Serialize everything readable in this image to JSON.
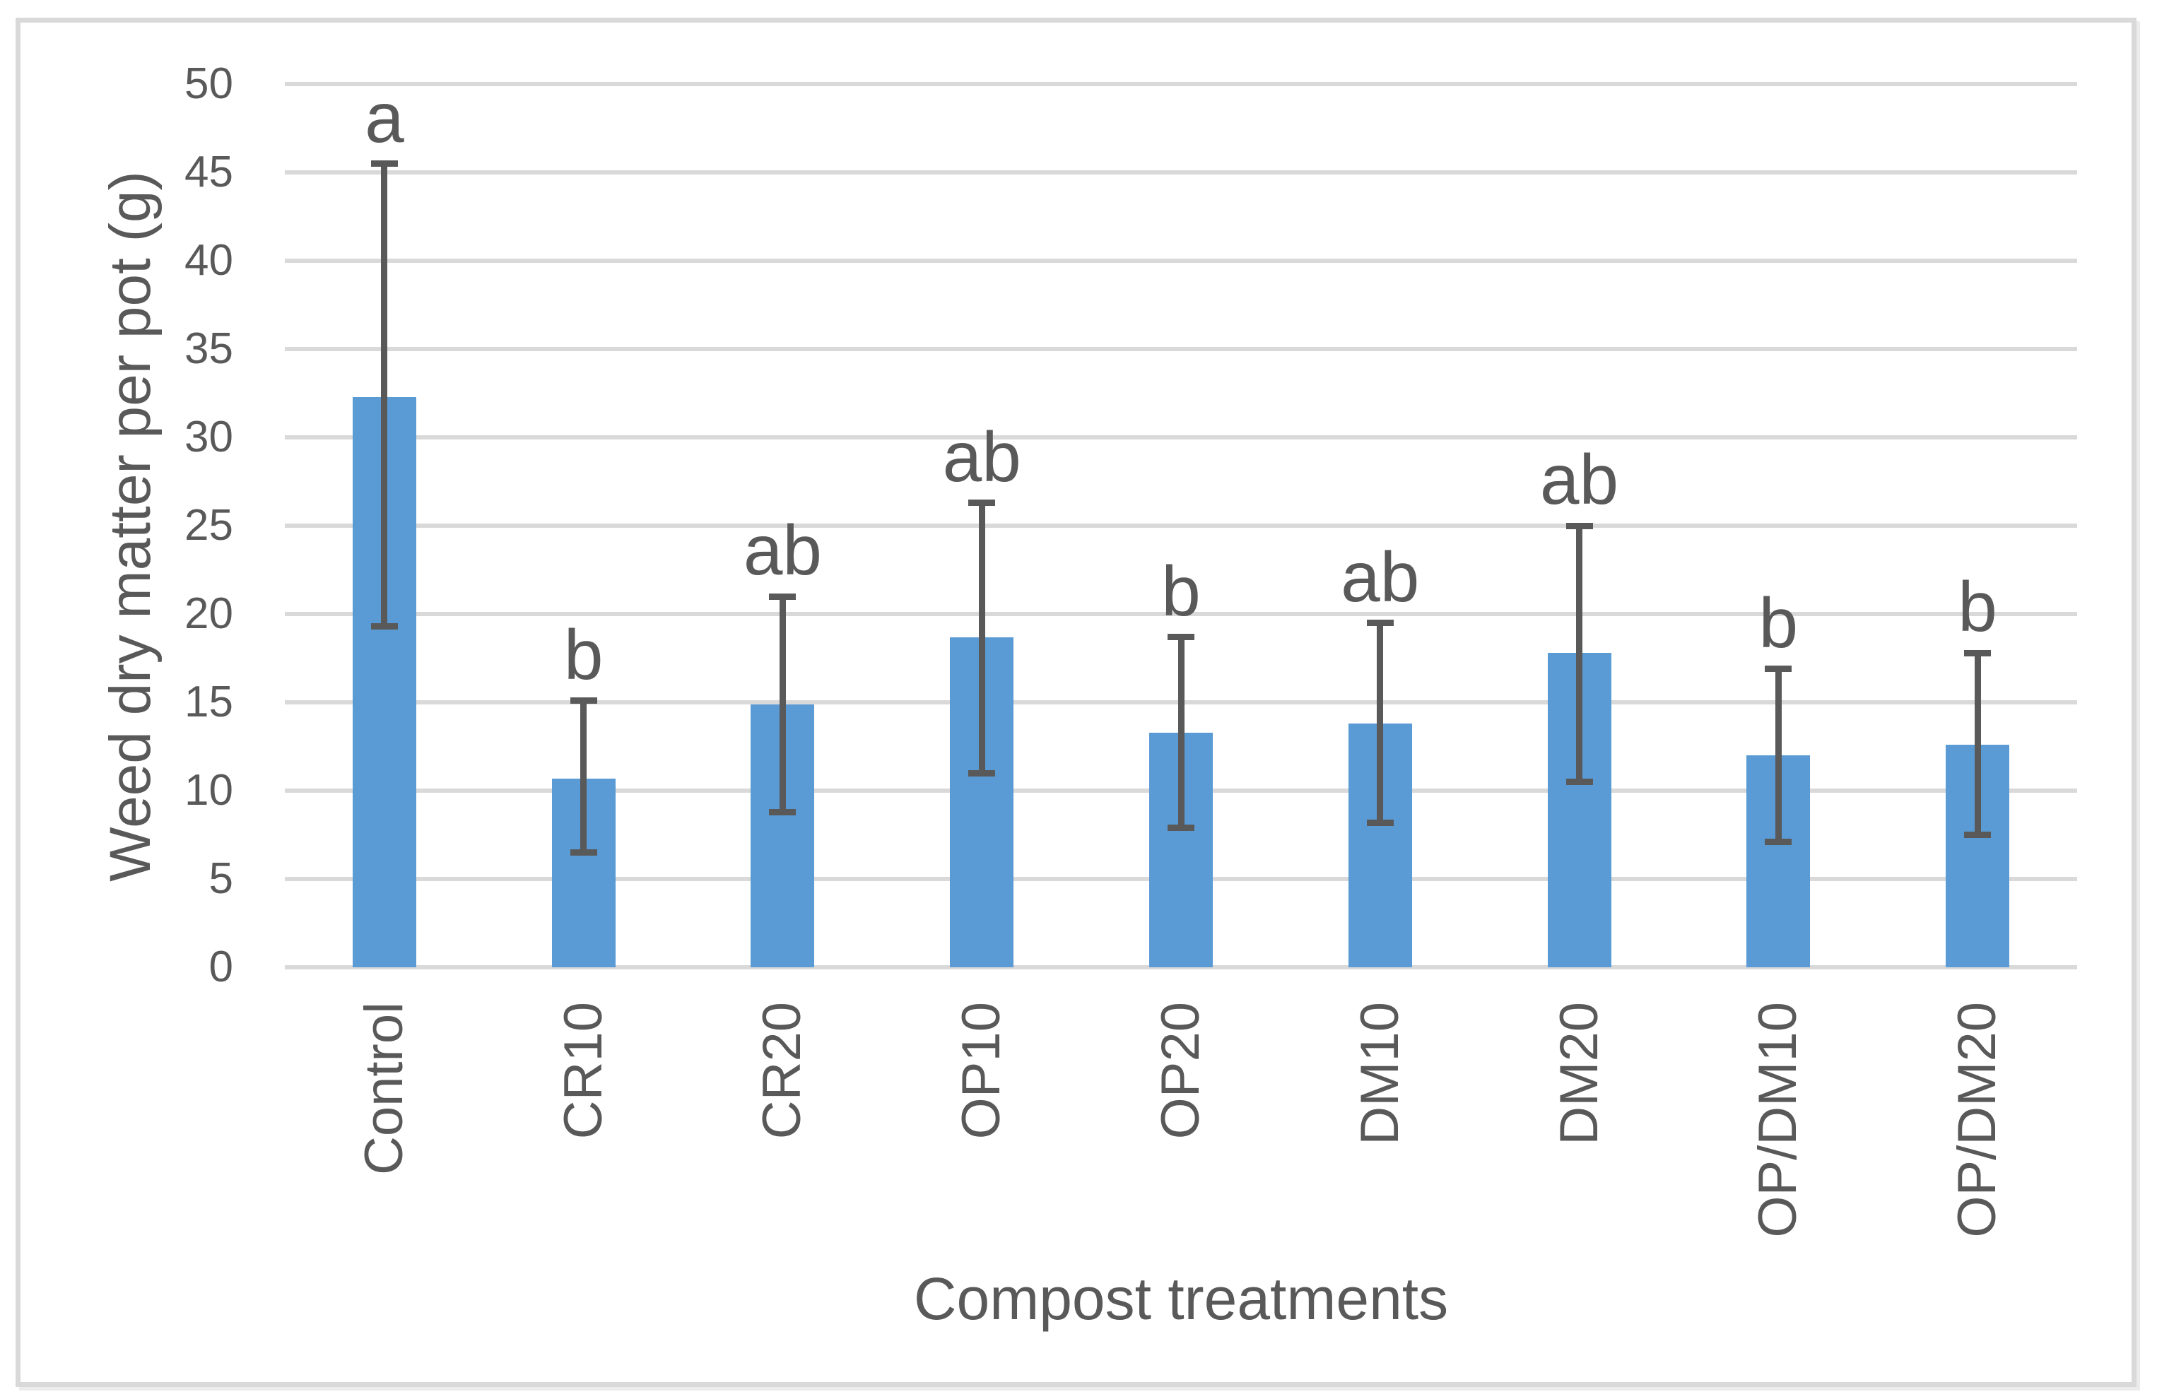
{
  "figure": {
    "background": "#FFFFFF",
    "border_color": "#D9D9D9"
  },
  "chart_data": {
    "type": "bar",
    "title": "",
    "xlabel": "Compost treatments",
    "ylabel": "Weed dry matter per pot (g)",
    "ylim": [
      0,
      50
    ],
    "yticks": [
      0,
      5,
      10,
      15,
      20,
      25,
      30,
      35,
      40,
      45,
      50
    ],
    "grid": true,
    "legend": false,
    "categories": [
      "Control",
      "CR10",
      "CR20",
      "OP10",
      "OP20",
      "DM10",
      "DM20",
      "OP/DM10",
      "OP/DM20"
    ],
    "series": [
      {
        "name": "Weed dry matter per pot",
        "values": [
          32.3,
          10.7,
          14.9,
          18.7,
          13.3,
          13.8,
          17.8,
          12.0,
          12.6
        ]
      }
    ],
    "error_bars": {
      "high": [
        45.5,
        15.1,
        21.0,
        26.3,
        18.7,
        19.5,
        25.0,
        16.9,
        17.8
      ],
      "low": [
        19.3,
        6.5,
        8.8,
        11.0,
        7.9,
        8.2,
        10.5,
        7.1,
        7.5
      ]
    },
    "sig_letters": [
      "a",
      "b",
      "ab",
      "ab",
      "b",
      "ab",
      "ab",
      "b",
      "b"
    ],
    "colors": {
      "bar": "#5B9BD5",
      "error": "#595959",
      "gridline": "#D9D9D9",
      "text": "#595959"
    }
  }
}
